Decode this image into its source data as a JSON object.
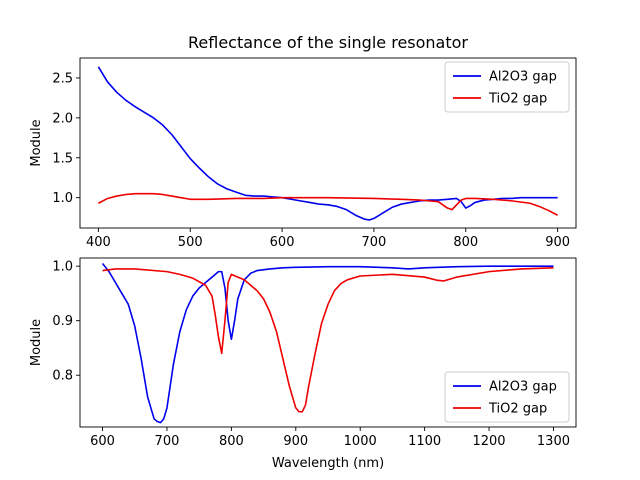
{
  "chart_data": [
    {
      "type": "line",
      "title": "Reflectance of the single resonator",
      "xlabel": "",
      "ylabel": "Module",
      "xlim": [
        380,
        920
      ],
      "ylim": [
        0.62,
        2.75
      ],
      "xticks": [
        400,
        500,
        600,
        700,
        800,
        900
      ],
      "yticks": [
        1.0,
        1.5,
        2.0,
        2.5
      ],
      "legend_position": "top-right",
      "series": [
        {
          "name": "Al2O3 gap",
          "color": "#0000ee",
          "x": [
            400,
            410,
            420,
            430,
            440,
            450,
            460,
            470,
            480,
            490,
            500,
            510,
            520,
            530,
            540,
            550,
            560,
            570,
            580,
            590,
            600,
            610,
            620,
            630,
            640,
            650,
            660,
            670,
            680,
            690,
            695,
            700,
            710,
            720,
            730,
            740,
            750,
            760,
            770,
            780,
            790,
            795,
            800,
            805,
            810,
            820,
            830,
            840,
            850,
            860,
            870,
            880,
            890,
            900
          ],
          "values": [
            2.64,
            2.45,
            2.32,
            2.22,
            2.14,
            2.07,
            2.0,
            1.91,
            1.79,
            1.64,
            1.49,
            1.37,
            1.26,
            1.17,
            1.11,
            1.07,
            1.03,
            1.02,
            1.02,
            1.01,
            1.0,
            0.98,
            0.96,
            0.94,
            0.92,
            0.91,
            0.89,
            0.85,
            0.78,
            0.73,
            0.72,
            0.74,
            0.81,
            0.88,
            0.92,
            0.94,
            0.96,
            0.97,
            0.97,
            0.98,
            0.99,
            0.95,
            0.87,
            0.9,
            0.94,
            0.97,
            0.98,
            0.99,
            0.99,
            1.0,
            1.0,
            1.0,
            1.0,
            1.0
          ]
        },
        {
          "name": "TiO2 gap",
          "color": "#ee0000",
          "x": [
            400,
            410,
            420,
            430,
            440,
            450,
            460,
            470,
            480,
            490,
            500,
            520,
            550,
            580,
            600,
            650,
            700,
            730,
            750,
            760,
            770,
            780,
            785,
            790,
            795,
            800,
            810,
            830,
            850,
            870,
            880,
            890,
            900
          ],
          "values": [
            0.93,
            0.99,
            1.02,
            1.04,
            1.05,
            1.05,
            1.05,
            1.04,
            1.02,
            1.0,
            0.98,
            0.98,
            0.99,
            0.99,
            1.0,
            1.0,
            0.99,
            0.98,
            0.97,
            0.96,
            0.95,
            0.87,
            0.85,
            0.91,
            0.97,
            0.99,
            0.99,
            0.98,
            0.96,
            0.93,
            0.89,
            0.84,
            0.78
          ]
        }
      ]
    },
    {
      "type": "line",
      "title": "",
      "xlabel": "Wavelength (nm)",
      "ylabel": "Module",
      "xlim": [
        565,
        1335
      ],
      "ylim": [
        0.705,
        1.015
      ],
      "xticks": [
        600,
        700,
        800,
        900,
        1000,
        1100,
        1200,
        1300
      ],
      "yticks": [
        0.8,
        0.9,
        1.0
      ],
      "legend_position": "bottom-right",
      "series": [
        {
          "name": "Al2O3 gap",
          "color": "#0000ee",
          "x": [
            600,
            610,
            620,
            630,
            640,
            650,
            660,
            670,
            680,
            685,
            690,
            695,
            700,
            705,
            710,
            720,
            730,
            740,
            750,
            760,
            770,
            780,
            785,
            790,
            795,
            800,
            805,
            810,
            820,
            830,
            840,
            860,
            880,
            900,
            950,
            1000,
            1050,
            1075,
            1100,
            1150,
            1200,
            1250,
            1300
          ],
          "values": [
            1.005,
            0.99,
            0.97,
            0.95,
            0.93,
            0.89,
            0.83,
            0.76,
            0.72,
            0.715,
            0.713,
            0.72,
            0.74,
            0.78,
            0.82,
            0.88,
            0.92,
            0.945,
            0.96,
            0.97,
            0.98,
            0.99,
            0.99,
            0.96,
            0.9,
            0.866,
            0.9,
            0.94,
            0.975,
            0.987,
            0.992,
            0.995,
            0.997,
            0.998,
            0.999,
            0.999,
            0.997,
            0.995,
            0.997,
            0.999,
            1.0,
            1.0,
            1.0
          ]
        },
        {
          "name": "TiO2 gap",
          "color": "#ee0000",
          "x": [
            600,
            620,
            650,
            700,
            720,
            740,
            760,
            770,
            775,
            780,
            785,
            790,
            795,
            800,
            810,
            820,
            830,
            840,
            850,
            860,
            870,
            880,
            890,
            900,
            905,
            910,
            915,
            920,
            930,
            940,
            950,
            960,
            970,
            980,
            1000,
            1050,
            1100,
            1120,
            1130,
            1150,
            1200,
            1250,
            1300
          ],
          "values": [
            0.992,
            0.995,
            0.995,
            0.99,
            0.985,
            0.978,
            0.965,
            0.945,
            0.91,
            0.87,
            0.84,
            0.9,
            0.97,
            0.985,
            0.98,
            0.975,
            0.965,
            0.955,
            0.94,
            0.915,
            0.88,
            0.83,
            0.78,
            0.74,
            0.733,
            0.733,
            0.745,
            0.78,
            0.84,
            0.895,
            0.93,
            0.955,
            0.968,
            0.975,
            0.982,
            0.985,
            0.98,
            0.974,
            0.973,
            0.98,
            0.99,
            0.995,
            0.997
          ]
        }
      ]
    }
  ]
}
